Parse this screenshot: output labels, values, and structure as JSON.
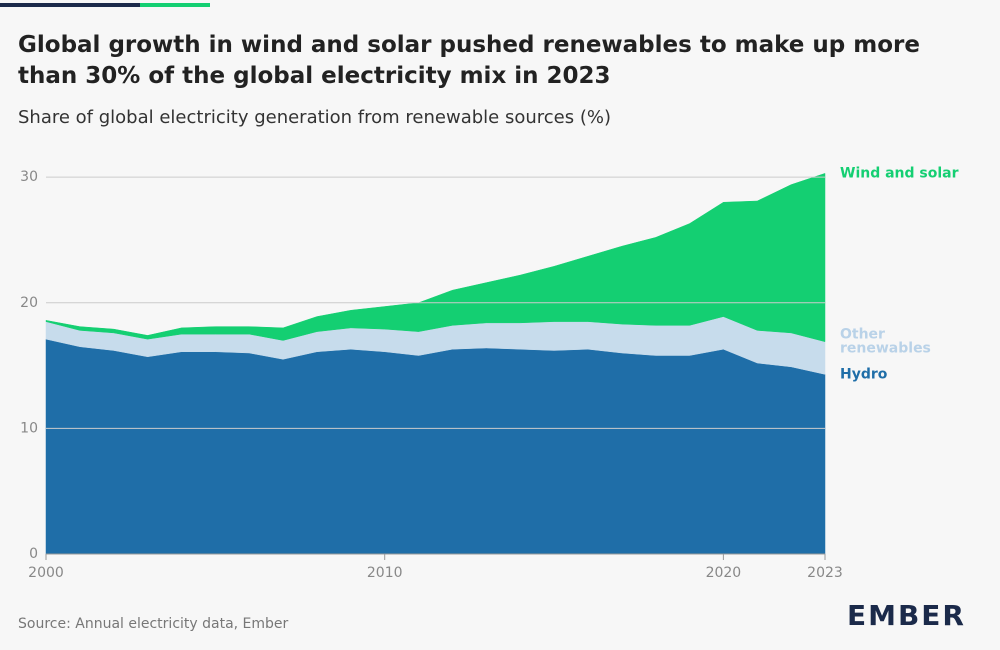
{
  "chart_data": {
    "type": "stacked-area",
    "title": "Global growth in wind and solar pushed renewables to make up more than 30% of the global electricity mix in 2023",
    "subtitle": "Share of global electricity generation from renewable sources (%)",
    "source": "Source: Annual electricity data, Ember",
    "x": [
      2000,
      2001,
      2002,
      2003,
      2004,
      2005,
      2006,
      2007,
      2008,
      2009,
      2010,
      2011,
      2012,
      2013,
      2014,
      2015,
      2016,
      2017,
      2018,
      2019,
      2020,
      2021,
      2022,
      2023
    ],
    "xlim": [
      2000,
      2023
    ],
    "xticks": [
      2000,
      2010,
      2020,
      2023
    ],
    "ylim": [
      0,
      32
    ],
    "yticks": [
      0,
      10,
      20,
      30
    ],
    "grid": true,
    "series": [
      {
        "name": "Hydro",
        "color": "#1f6ea8",
        "values": [
          17.1,
          16.5,
          16.2,
          15.7,
          16.1,
          16.1,
          16.0,
          15.5,
          16.1,
          16.3,
          16.1,
          15.8,
          16.3,
          16.4,
          16.3,
          16.2,
          16.3,
          16.0,
          15.8,
          15.8,
          16.3,
          15.2,
          14.9,
          14.3
        ]
      },
      {
        "name": "Other renewables",
        "color": "#c7dcec",
        "values": [
          1.4,
          1.3,
          1.4,
          1.4,
          1.4,
          1.4,
          1.5,
          1.5,
          1.6,
          1.7,
          1.8,
          1.9,
          1.9,
          2.0,
          2.1,
          2.3,
          2.2,
          2.3,
          2.4,
          2.4,
          2.6,
          2.6,
          2.7,
          2.6
        ]
      },
      {
        "name": "Wind and solar",
        "color": "#14cf72",
        "values": [
          0.1,
          0.3,
          0.3,
          0.3,
          0.5,
          0.6,
          0.6,
          1.0,
          1.2,
          1.4,
          1.8,
          2.3,
          2.8,
          3.2,
          3.8,
          4.4,
          5.2,
          6.2,
          7.0,
          8.1,
          9.1,
          10.3,
          11.8,
          13.4
        ]
      }
    ]
  },
  "brand": "EMBER"
}
